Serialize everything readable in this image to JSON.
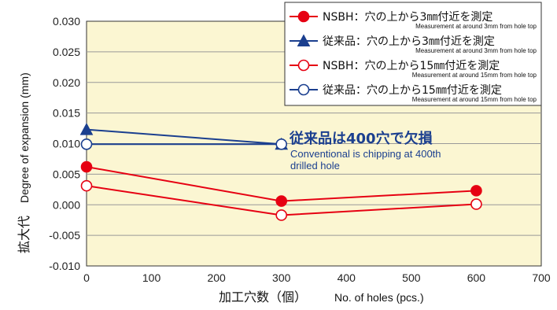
{
  "chart_data": {
    "type": "line",
    "xlabel_jp": "加工穴数（個）",
    "xlabel_en": "No. of holes (pcs.)",
    "ylabel_jp": "拡大代",
    "ylabel_en": "Degree of expansion (mm)",
    "xlim": [
      0,
      700
    ],
    "ylim": [
      -0.01,
      0.03
    ],
    "xticks": [
      "0",
      "100",
      "200",
      "300",
      "400",
      "500",
      "600",
      "700"
    ],
    "yticks": [
      "0.030",
      "0.025",
      "0.020",
      "0.015",
      "0.010",
      "0.005",
      "0.000",
      "-0.005",
      "-0.010"
    ],
    "grid": "horizontal",
    "legend_position": "top-right",
    "series": [
      {
        "name": "NSBH：穴の上から3㎜付近を測定",
        "sub": "Measurement at around 3mm from hole top",
        "color": "#e60012",
        "marker": "filled-circle",
        "x": [
          0,
          300,
          600
        ],
        "y": [
          0.0062,
          0.0006,
          0.0023
        ]
      },
      {
        "name": "従来品：穴の上から3㎜付近を測定",
        "sub": "Measurement at around 3mm from hole top",
        "color": "#1b3f8f",
        "marker": "filled-triangle",
        "x": [
          0,
          300
        ],
        "y": [
          0.0123,
          0.0099
        ]
      },
      {
        "name": "NSBH：穴の上から15㎜付近を測定",
        "sub": "Measurement at around 15mm from hole top",
        "color": "#e60012",
        "marker": "open-circle",
        "x": [
          0,
          300,
          600
        ],
        "y": [
          0.0031,
          -0.0017,
          0.0001
        ]
      },
      {
        "name": "従来品：穴の上から15㎜付近を測定",
        "sub": "Measurement at around 15mm from hole top",
        "color": "#1b3f8f",
        "marker": "open-circle",
        "x": [
          0,
          300
        ],
        "y": [
          0.0099,
          0.0099
        ]
      }
    ],
    "annotation": {
      "main": "従来品は400穴で欠損",
      "sub_line1": "Conventional is chipping at 400th",
      "sub_line2": "drilled hole"
    }
  },
  "colors": {
    "plot_bg": "#fbf6d2",
    "grid": "#999999",
    "axis": "#333333"
  }
}
